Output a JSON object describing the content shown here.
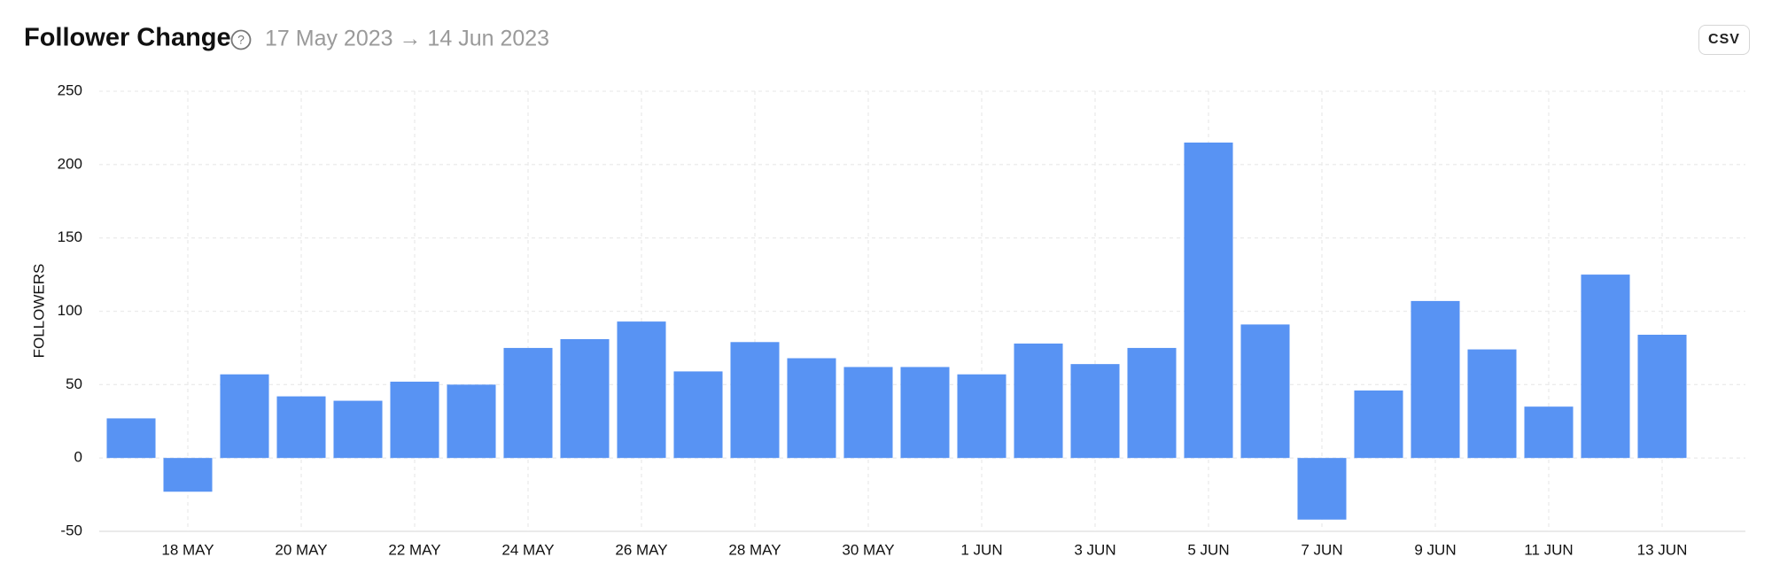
{
  "chart_data": {
    "type": "bar",
    "title": "Follower Change",
    "subtitle": "17 May 2023 → 14 Jun 2023",
    "y_label": "FOLLOWERS",
    "categories": [
      null,
      "18 MAY",
      null,
      "20 MAY",
      null,
      "22 MAY",
      null,
      "24 MAY",
      null,
      "26 MAY",
      null,
      "28 MAY",
      null,
      "30 MAY",
      null,
      "1 JUN",
      null,
      "3 JUN",
      null,
      "5 JUN",
      null,
      "7 JUN",
      null,
      "9 JUN",
      null,
      "11 JUN",
      null,
      "13 JUN"
    ],
    "values": [
      27,
      -23,
      57,
      42,
      39,
      52,
      50,
      75,
      81,
      93,
      59,
      79,
      68,
      62,
      62,
      57,
      78,
      64,
      75,
      215,
      91,
      -42,
      46,
      107,
      74,
      35,
      125,
      84
    ],
    "color": "#5893f3",
    "ylim": [
      -50,
      250
    ],
    "yticks": [
      -50,
      0,
      50,
      100,
      150,
      200,
      250
    ],
    "grid": true
  },
  "actions": {
    "export_button": "CSV"
  }
}
